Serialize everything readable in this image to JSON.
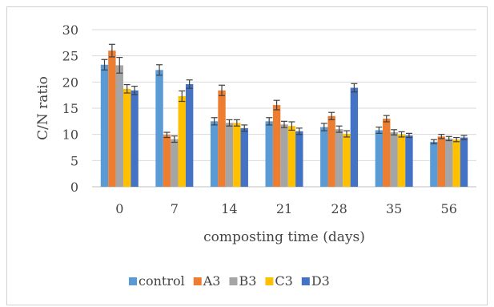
{
  "chart_data": {
    "type": "bar",
    "title": "",
    "xlabel": "composting time (days)",
    "ylabel": "C/N ratio",
    "categories": [
      "0",
      "7",
      "14",
      "21",
      "28",
      "35",
      "56"
    ],
    "ylim": [
      0,
      30
    ],
    "yticks": [
      "0",
      "5",
      "10",
      "15",
      "20",
      "25",
      "30"
    ],
    "grid": true,
    "legend_position": "bottom",
    "error_bars": true,
    "series": [
      {
        "name": "control",
        "color": "#5B9BD5",
        "values": [
          23.3,
          22.3,
          12.5,
          12.5,
          11.4,
          10.8,
          8.6
        ],
        "errors": [
          1.0,
          1.0,
          0.7,
          0.7,
          0.7,
          0.6,
          0.4
        ]
      },
      {
        "name": "A3",
        "color": "#ED7D31",
        "values": [
          26.0,
          9.9,
          18.4,
          15.6,
          13.5,
          13.0,
          9.6
        ],
        "errors": [
          1.2,
          0.5,
          1.0,
          0.9,
          0.7,
          0.6,
          0.4
        ]
      },
      {
        "name": "B3",
        "color": "#A5A5A5",
        "values": [
          23.2,
          9.1,
          12.2,
          11.9,
          11.0,
          10.4,
          9.2
        ],
        "errors": [
          1.5,
          0.6,
          0.6,
          0.6,
          0.6,
          0.5,
          0.4
        ]
      },
      {
        "name": "C3",
        "color": "#FFC000",
        "values": [
          18.7,
          17.3,
          12.2,
          11.6,
          10.1,
          10.0,
          9.0
        ],
        "errors": [
          0.8,
          1.0,
          0.6,
          0.8,
          0.6,
          0.5,
          0.4
        ]
      },
      {
        "name": "D3",
        "color": "#4472C4",
        "values": [
          18.4,
          19.6,
          11.2,
          10.6,
          18.9,
          9.8,
          9.4
        ],
        "errors": [
          0.8,
          0.8,
          0.6,
          0.6,
          0.8,
          0.4,
          0.4
        ]
      }
    ]
  }
}
